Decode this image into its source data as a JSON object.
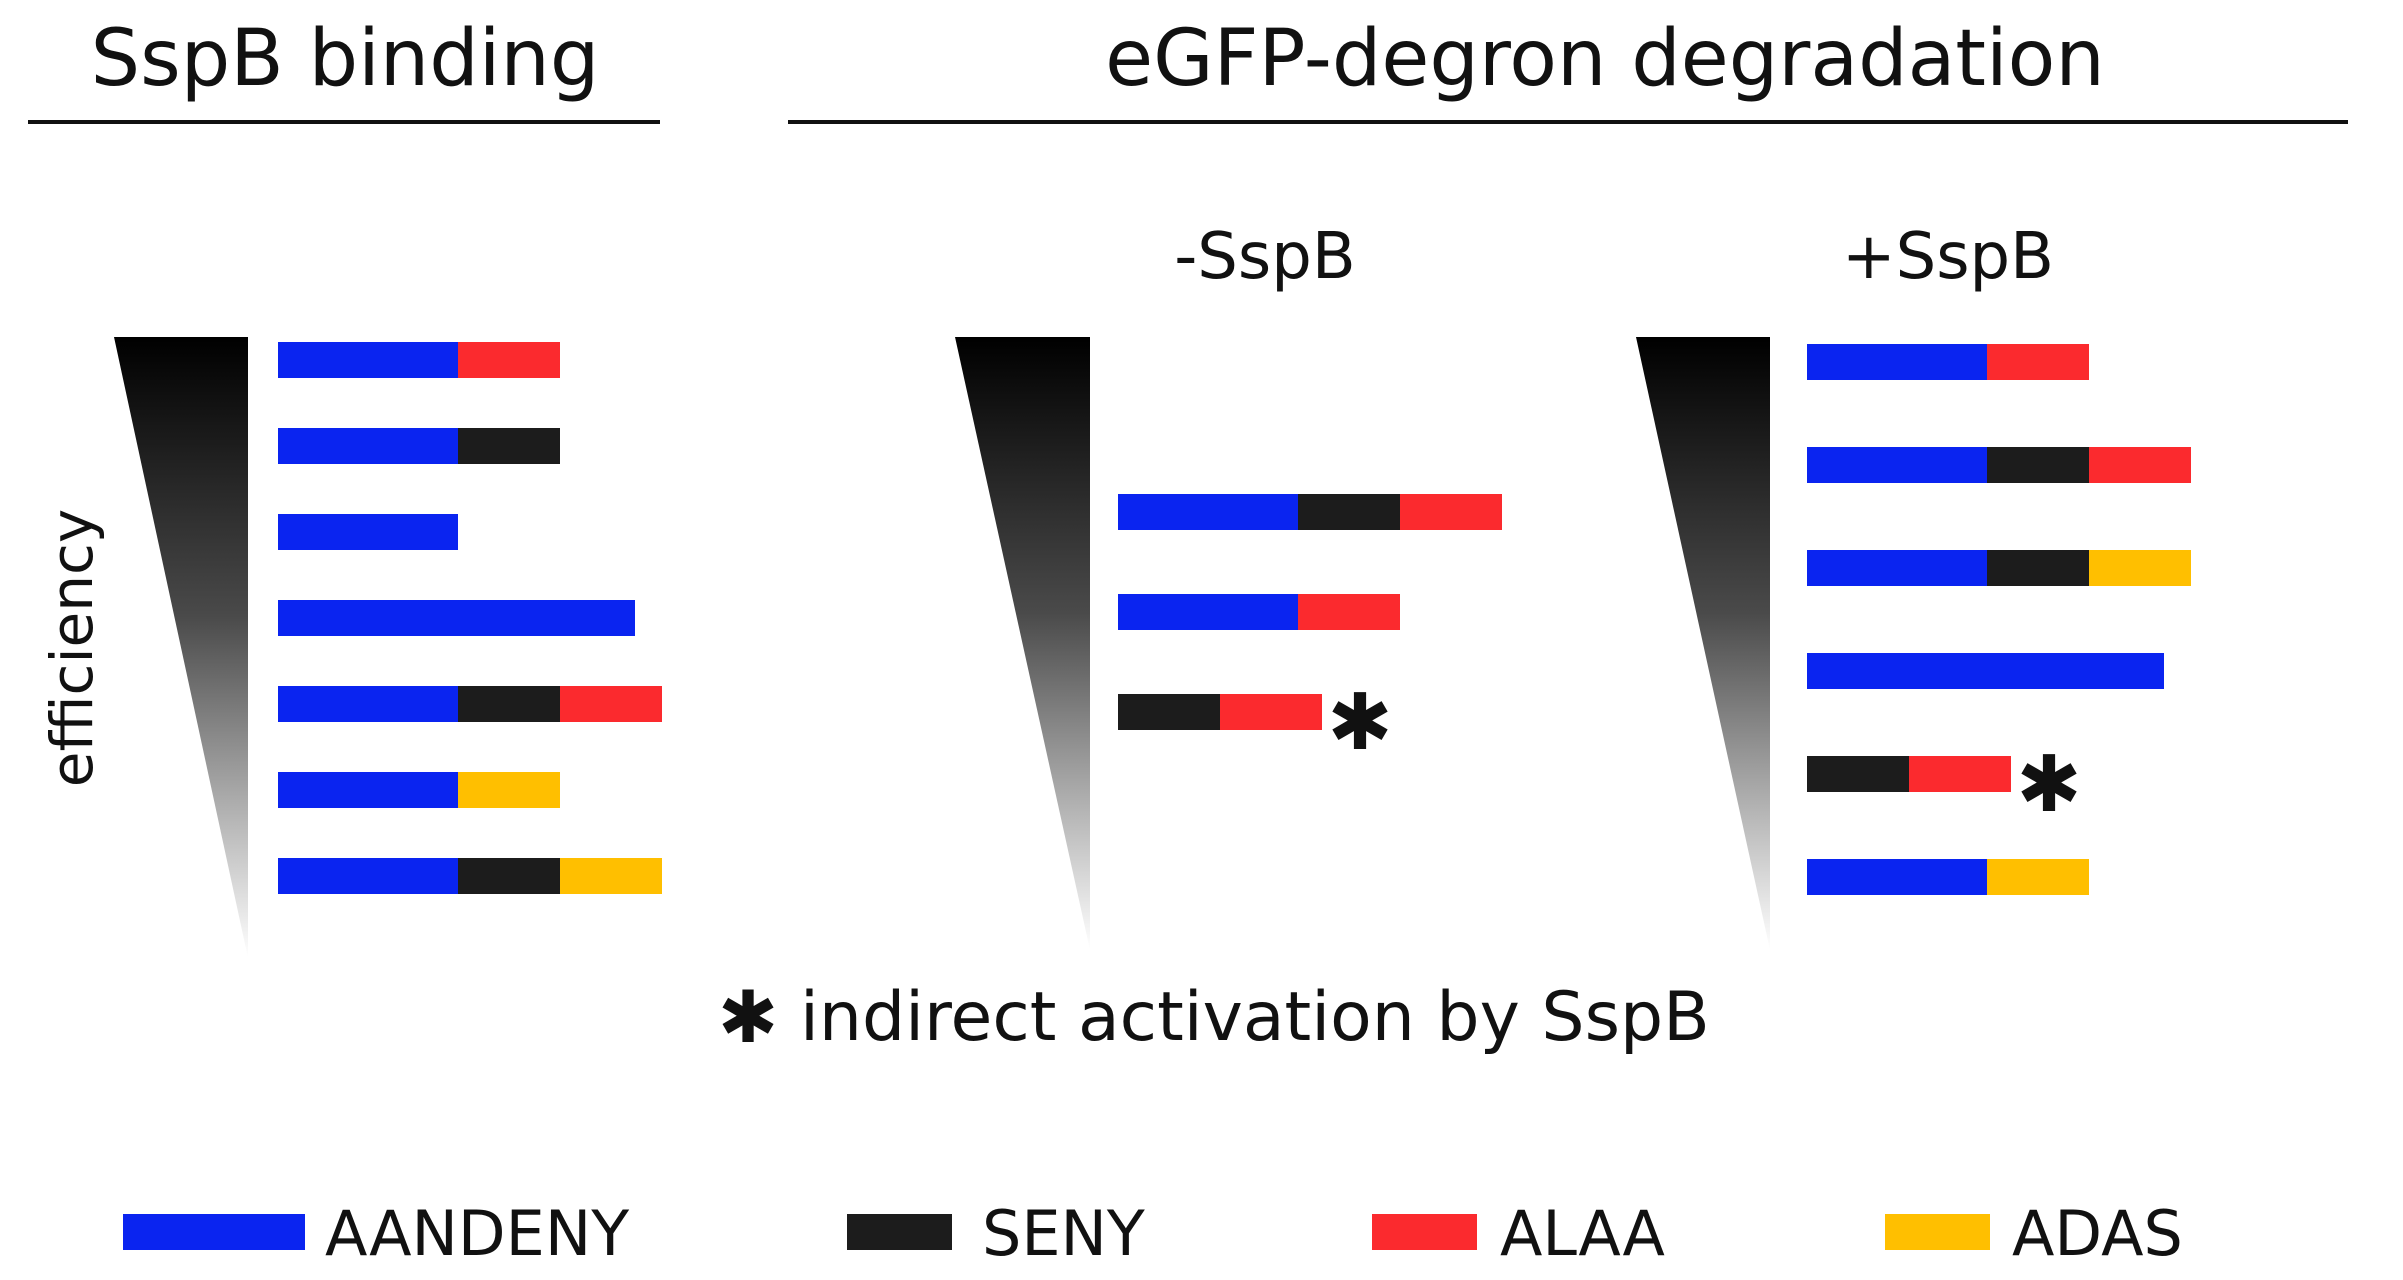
{
  "headings": {
    "left": "SspB binding",
    "right": "eGFP-degron degradation"
  },
  "subheadings": {
    "minus": "-SspB",
    "plus": "+SspB"
  },
  "axis_label": "efficiency",
  "footnote": {
    "symbol": "✱",
    "text": "indirect activation by SspB"
  },
  "legend": [
    {
      "key": "AANDENY",
      "label": "AANDENY",
      "color": "#0a24f0"
    },
    {
      "key": "SENY",
      "label": "SENY",
      "color": "#1c1c1c"
    },
    {
      "key": "ALAA",
      "label": "ALAA",
      "color": "#fb2a2e"
    },
    {
      "key": "ADAS",
      "label": "ADAS",
      "color": "#ffbf00"
    }
  ],
  "panels": [
    {
      "name": "sspb-binding",
      "rows": [
        {
          "segments": [
            "AANDENY",
            "ALAA"
          ],
          "indirect": false
        },
        {
          "segments": [
            "AANDENY",
            "SENY"
          ],
          "indirect": false
        },
        {
          "segments": [
            "AANDENY"
          ],
          "indirect": false
        },
        {
          "segments": [
            "AANDENY-long"
          ],
          "indirect": false
        },
        {
          "segments": [
            "AANDENY",
            "SENY",
            "ALAA"
          ],
          "indirect": false
        },
        {
          "segments": [
            "AANDENY",
            "ADAS"
          ],
          "indirect": false
        },
        {
          "segments": [
            "AANDENY",
            "SENY",
            "ADAS"
          ],
          "indirect": false
        }
      ]
    },
    {
      "name": "degradation-minus-sspb",
      "rows": [
        {
          "segments": [
            "AANDENY",
            "SENY",
            "ALAA"
          ],
          "indirect": false
        },
        {
          "segments": [
            "AANDENY",
            "ALAA"
          ],
          "indirect": false
        },
        {
          "segments": [
            "SENY",
            "ALAA"
          ],
          "indirect": true
        }
      ]
    },
    {
      "name": "degradation-plus-sspb",
      "rows": [
        {
          "segments": [
            "AANDENY",
            "ALAA"
          ],
          "indirect": false
        },
        {
          "segments": [
            "AANDENY",
            "SENY",
            "ALAA"
          ],
          "indirect": false
        },
        {
          "segments": [
            "AANDENY",
            "SENY",
            "ADAS"
          ],
          "indirect": false
        },
        {
          "segments": [
            "AANDENY-long"
          ],
          "indirect": false
        },
        {
          "segments": [
            "SENY",
            "ALAA"
          ],
          "indirect": true
        },
        {
          "segments": [
            "AANDENY",
            "ADAS"
          ],
          "indirect": false
        }
      ]
    }
  ]
}
